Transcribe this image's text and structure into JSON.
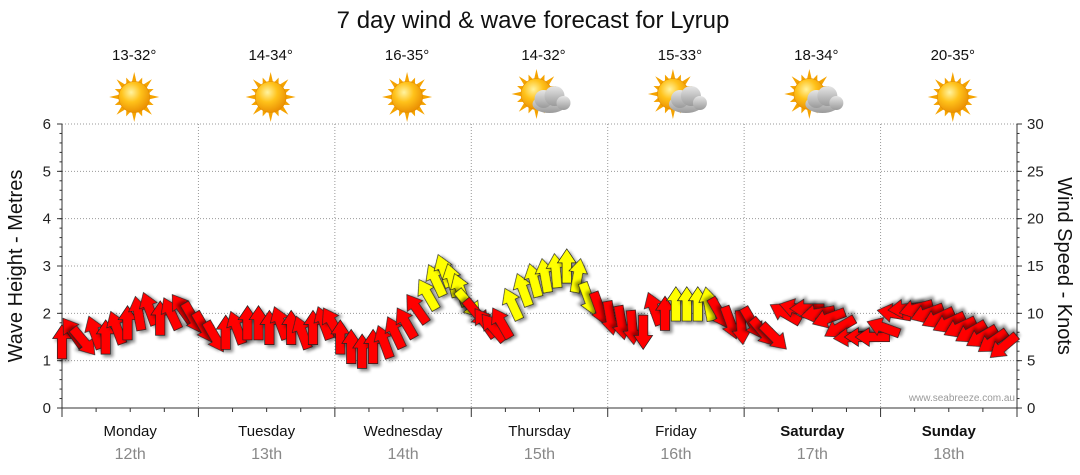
{
  "chart_data": {
    "type": "line",
    "title": "7 day wind & wave forecast for Lyrup",
    "ylabel_left": "Wave Height - Metres",
    "ylabel_right": "Wind Speed - Knots",
    "ylim_left": [
      0,
      6
    ],
    "ylim_right": [
      0,
      30
    ],
    "yticks_left": [
      "0",
      "1",
      "2",
      "3",
      "4",
      "5",
      "6"
    ],
    "yticks_right": [
      "0",
      "5",
      "10",
      "15",
      "20",
      "25",
      "30"
    ],
    "credit": "www.seabreeze.com.au",
    "days": [
      {
        "name": "Monday",
        "date": "12th",
        "temp": "13-32°",
        "weather": "sunny",
        "bold": false
      },
      {
        "name": "Tuesday",
        "date": "13th",
        "temp": "14-34°",
        "weather": "sunny",
        "bold": false
      },
      {
        "name": "Wednesday",
        "date": "14th",
        "temp": "16-35°",
        "weather": "sunny",
        "bold": false
      },
      {
        "name": "Thursday",
        "date": "15th",
        "temp": "14-32°",
        "weather": "partly-cloudy",
        "bold": false
      },
      {
        "name": "Friday",
        "date": "16th",
        "temp": "15-33°",
        "weather": "partly-cloudy",
        "bold": false
      },
      {
        "name": "Saturday",
        "date": "17th",
        "temp": "18-34°",
        "weather": "partly-cloudy",
        "bold": true
      },
      {
        "name": "Sunday",
        "date": "18th",
        "temp": "20-35°",
        "weather": "sunny",
        "bold": true
      }
    ],
    "wind_series": {
      "name": "Wind Speed (knots)",
      "points": [
        {
          "t": 0.0,
          "v": 7.0,
          "dir": 0
        },
        {
          "t": 0.08,
          "v": 8.0,
          "dir": -35
        },
        {
          "t": 0.16,
          "v": 7.0,
          "dir": 140
        },
        {
          "t": 0.24,
          "v": 8.0,
          "dir": -20
        },
        {
          "t": 0.32,
          "v": 7.5,
          "dir": 0
        },
        {
          "t": 0.4,
          "v": 8.5,
          "dir": -20
        },
        {
          "t": 0.48,
          "v": 9.0,
          "dir": 0
        },
        {
          "t": 0.56,
          "v": 10.0,
          "dir": -10
        },
        {
          "t": 0.64,
          "v": 10.5,
          "dir": -20
        },
        {
          "t": 0.72,
          "v": 9.5,
          "dir": 0
        },
        {
          "t": 0.8,
          "v": 10.0,
          "dir": -25
        },
        {
          "t": 0.88,
          "v": 10.5,
          "dir": -35
        },
        {
          "t": 0.96,
          "v": 9.5,
          "dir": 150
        },
        {
          "t": 1.04,
          "v": 8.5,
          "dir": 150
        },
        {
          "t": 1.12,
          "v": 7.5,
          "dir": 150
        },
        {
          "t": 1.2,
          "v": 8.0,
          "dir": 0
        },
        {
          "t": 1.28,
          "v": 8.5,
          "dir": -20
        },
        {
          "t": 1.36,
          "v": 9.0,
          "dir": 0
        },
        {
          "t": 1.44,
          "v": 9.0,
          "dir": 0
        },
        {
          "t": 1.52,
          "v": 8.5,
          "dir": 0
        },
        {
          "t": 1.6,
          "v": 9.0,
          "dir": -20
        },
        {
          "t": 1.68,
          "v": 8.5,
          "dir": 0
        },
        {
          "t": 1.76,
          "v": 8.0,
          "dir": -20
        },
        {
          "t": 1.84,
          "v": 8.5,
          "dir": 0
        },
        {
          "t": 1.92,
          "v": 9.0,
          "dir": -20
        },
        {
          "t": 1.98,
          "v": 9.0,
          "dir": -30
        },
        {
          "t": 2.04,
          "v": 7.5,
          "dir": 0
        },
        {
          "t": 2.12,
          "v": 6.5,
          "dir": 0
        },
        {
          "t": 2.2,
          "v": 6.0,
          "dir": 0
        },
        {
          "t": 2.28,
          "v": 6.5,
          "dir": 0
        },
        {
          "t": 2.36,
          "v": 7.0,
          "dir": -20
        },
        {
          "t": 2.44,
          "v": 8.0,
          "dir": -25
        },
        {
          "t": 2.52,
          "v": 9.0,
          "dir": -30
        },
        {
          "t": 2.6,
          "v": 10.5,
          "dir": -35
        },
        {
          "t": 2.68,
          "v": 12.0,
          "dir": -30
        },
        {
          "t": 2.74,
          "v": 13.5,
          "dir": -25
        },
        {
          "t": 2.8,
          "v": 14.5,
          "dir": -20
        },
        {
          "t": 2.86,
          "v": 13.5,
          "dir": -15
        },
        {
          "t": 2.92,
          "v": 12.5,
          "dir": -20
        },
        {
          "t": 2.98,
          "v": 11.0,
          "dir": 140
        },
        {
          "t": 3.04,
          "v": 10.0,
          "dir": 140
        },
        {
          "t": 3.1,
          "v": 9.0,
          "dir": -35
        },
        {
          "t": 3.16,
          "v": 8.5,
          "dir": -40
        },
        {
          "t": 3.22,
          "v": 9.0,
          "dir": -30
        },
        {
          "t": 3.3,
          "v": 11.0,
          "dir": -25
        },
        {
          "t": 3.38,
          "v": 12.5,
          "dir": -20
        },
        {
          "t": 3.46,
          "v": 13.5,
          "dir": -15
        },
        {
          "t": 3.54,
          "v": 14.0,
          "dir": -10
        },
        {
          "t": 3.62,
          "v": 14.5,
          "dir": -5
        },
        {
          "t": 3.7,
          "v": 15.0,
          "dir": 0
        },
        {
          "t": 3.78,
          "v": 14.0,
          "dir": 10
        },
        {
          "t": 3.86,
          "v": 11.5,
          "dir": 160
        },
        {
          "t": 3.94,
          "v": 10.5,
          "dir": 160
        },
        {
          "t": 4.02,
          "v": 9.5,
          "dir": 170
        },
        {
          "t": 4.1,
          "v": 9.0,
          "dir": 170
        },
        {
          "t": 4.18,
          "v": 8.5,
          "dir": 175
        },
        {
          "t": 4.26,
          "v": 8.0,
          "dir": 180
        },
        {
          "t": 4.34,
          "v": 10.5,
          "dir": -20
        },
        {
          "t": 4.42,
          "v": 10.0,
          "dir": 0
        },
        {
          "t": 4.5,
          "v": 11.0,
          "dir": 0
        },
        {
          "t": 4.58,
          "v": 11.0,
          "dir": 0
        },
        {
          "t": 4.66,
          "v": 11.0,
          "dir": 0
        },
        {
          "t": 4.74,
          "v": 11.0,
          "dir": -10
        },
        {
          "t": 4.82,
          "v": 10.0,
          "dir": 150
        },
        {
          "t": 4.9,
          "v": 9.0,
          "dir": 160
        },
        {
          "t": 4.98,
          "v": 8.5,
          "dir": 175
        },
        {
          "t": 5.06,
          "v": 9.0,
          "dir": 150
        },
        {
          "t": 5.14,
          "v": 8.0,
          "dir": 140
        },
        {
          "t": 5.22,
          "v": 7.5,
          "dir": 135
        },
        {
          "t": 5.3,
          "v": 10.0,
          "dir": -60
        },
        {
          "t": 5.38,
          "v": 10.5,
          "dir": -75
        },
        {
          "t": 5.46,
          "v": 10.5,
          "dir": -90
        },
        {
          "t": 5.54,
          "v": 10.0,
          "dir": -100
        },
        {
          "t": 5.62,
          "v": 9.5,
          "dir": -110
        },
        {
          "t": 5.7,
          "v": 8.5,
          "dir": -120
        },
        {
          "t": 5.78,
          "v": 7.5,
          "dir": -95
        },
        {
          "t": 5.86,
          "v": 7.5,
          "dir": -90
        },
        {
          "t": 5.94,
          "v": 7.5,
          "dir": -90
        },
        {
          "t": 6.02,
          "v": 8.5,
          "dir": -70
        },
        {
          "t": 6.1,
          "v": 10.0,
          "dir": -80
        },
        {
          "t": 6.18,
          "v": 10.5,
          "dir": -95
        },
        {
          "t": 6.26,
          "v": 10.5,
          "dir": -105
        },
        {
          "t": 6.34,
          "v": 10.0,
          "dir": -110
        },
        {
          "t": 6.42,
          "v": 9.5,
          "dir": -115
        },
        {
          "t": 6.5,
          "v": 9.0,
          "dir": -115
        },
        {
          "t": 6.58,
          "v": 8.5,
          "dir": -115
        },
        {
          "t": 6.66,
          "v": 8.0,
          "dir": -120
        },
        {
          "t": 6.74,
          "v": 7.5,
          "dir": -120
        },
        {
          "t": 6.82,
          "v": 7.0,
          "dir": -125
        },
        {
          "t": 6.9,
          "v": 6.5,
          "dir": -130
        }
      ]
    }
  },
  "colors": {
    "arrow_low": "#ff0000",
    "arrow_high": "#ffff00",
    "grid": "#999999",
    "axis": "#333333"
  }
}
